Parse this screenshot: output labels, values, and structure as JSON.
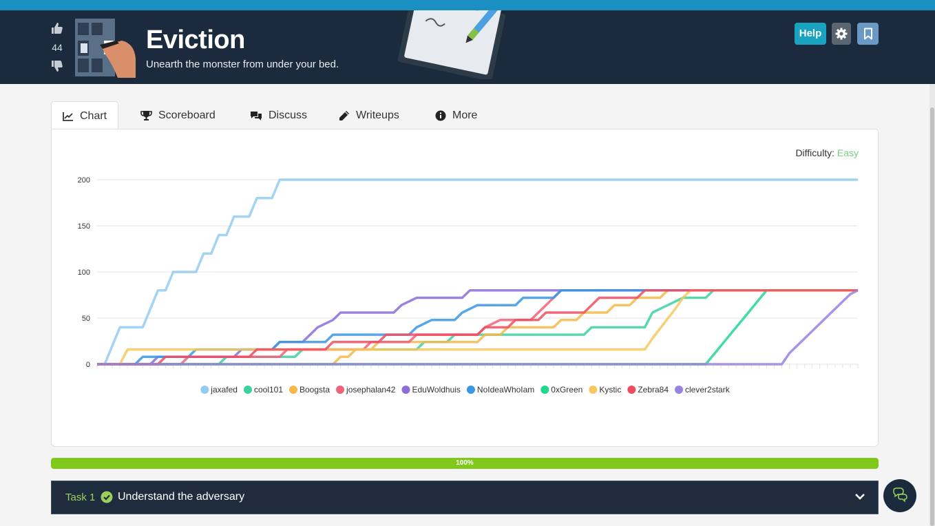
{
  "room": {
    "title": "Eviction",
    "subtitle": "Unearth the monster from under your bed.",
    "vote_count": "44"
  },
  "header_buttons": {
    "help": "Help"
  },
  "tabs": [
    {
      "label": "Chart",
      "icon": "line-chart-icon",
      "active": true
    },
    {
      "label": "Scoreboard",
      "icon": "trophy-icon"
    },
    {
      "label": "Discuss",
      "icon": "comments-icon"
    },
    {
      "label": "Writeups",
      "icon": "pencil-icon"
    },
    {
      "label": "More",
      "icon": "info-circle-icon"
    }
  ],
  "difficulty": {
    "label": "Difficulty:",
    "value": "Easy",
    "value_color": "#7bcf7e"
  },
  "progress": {
    "value": 100,
    "label": "100%",
    "color": "#80c91a"
  },
  "task": {
    "number": "Task 1",
    "title": "Understand the adversary",
    "completed": true
  },
  "chart_data": {
    "type": "line",
    "y_ticks": [
      0,
      50,
      100,
      150,
      200
    ],
    "ylim": [
      0,
      200
    ],
    "x_range": [
      0,
      100
    ],
    "grid": true,
    "legend_position": "bottom",
    "series": [
      {
        "name": "jaxafed",
        "color": "#94cbf2",
        "points": [
          [
            0,
            0
          ],
          [
            1,
            0
          ],
          [
            2,
            20
          ],
          [
            3,
            40
          ],
          [
            6,
            40
          ],
          [
            7,
            60
          ],
          [
            8,
            80
          ],
          [
            9,
            80
          ],
          [
            10,
            100
          ],
          [
            13,
            100
          ],
          [
            14,
            120
          ],
          [
            15,
            120
          ],
          [
            16,
            140
          ],
          [
            17,
            140
          ],
          [
            18,
            160
          ],
          [
            20,
            160
          ],
          [
            21,
            180
          ],
          [
            23,
            180
          ],
          [
            24,
            200
          ],
          [
            100,
            200
          ]
        ]
      },
      {
        "name": "cool101",
        "color": "#3dd0a0",
        "points": [
          [
            0,
            0
          ],
          [
            16,
            0
          ],
          [
            17,
            8
          ],
          [
            26,
            8
          ],
          [
            27,
            16
          ],
          [
            42,
            16
          ],
          [
            43,
            24
          ],
          [
            46,
            24
          ],
          [
            47,
            32
          ],
          [
            64,
            32
          ],
          [
            65,
            40
          ],
          [
            72,
            40
          ],
          [
            73,
            56
          ],
          [
            75,
            64
          ],
          [
            77,
            72
          ],
          [
            80,
            72
          ],
          [
            81,
            80
          ],
          [
            100,
            80
          ]
        ]
      },
      {
        "name": "Boogsta",
        "color": "#f5b84a",
        "points": [
          [
            0,
            0
          ],
          [
            31,
            0
          ],
          [
            32,
            8
          ],
          [
            33,
            8
          ],
          [
            34,
            16
          ],
          [
            36,
            16
          ],
          [
            37,
            24
          ],
          [
            50,
            24
          ],
          [
            51,
            32
          ],
          [
            53,
            32
          ],
          [
            54,
            40
          ],
          [
            60,
            40
          ],
          [
            61,
            48
          ],
          [
            63,
            48
          ],
          [
            64,
            56
          ],
          [
            67,
            56
          ],
          [
            68,
            64
          ],
          [
            70,
            64
          ],
          [
            71,
            72
          ],
          [
            74,
            72
          ],
          [
            75,
            80
          ],
          [
            100,
            80
          ]
        ]
      },
      {
        "name": "josephalan42",
        "color": "#f0627a",
        "points": [
          [
            0,
            0
          ],
          [
            11,
            0
          ],
          [
            12,
            8
          ],
          [
            24,
            8
          ],
          [
            25,
            16
          ],
          [
            35,
            16
          ],
          [
            36,
            24
          ],
          [
            41,
            24
          ],
          [
            42,
            32
          ],
          [
            50,
            32
          ],
          [
            51,
            40
          ],
          [
            53,
            48
          ],
          [
            57,
            48
          ],
          [
            58,
            56
          ],
          [
            59,
            64
          ],
          [
            60,
            72
          ],
          [
            61,
            80
          ],
          [
            100,
            80
          ]
        ]
      },
      {
        "name": "EduWoldhuis",
        "color": "#8b6fd6",
        "points": [
          [
            0,
            0
          ],
          [
            7,
            0
          ],
          [
            8,
            8
          ],
          [
            18,
            8
          ],
          [
            19,
            16
          ],
          [
            23,
            16
          ],
          [
            24,
            24
          ],
          [
            27,
            24
          ],
          [
            28,
            32
          ],
          [
            29,
            40
          ],
          [
            31,
            48
          ],
          [
            32,
            56
          ],
          [
            39,
            56
          ],
          [
            40,
            64
          ],
          [
            42,
            72
          ],
          [
            48,
            72
          ],
          [
            49,
            80
          ],
          [
            100,
            80
          ]
        ]
      },
      {
        "name": "NoIdeaWhoIam",
        "color": "#3a97e6",
        "points": [
          [
            0,
            0
          ],
          [
            5,
            0
          ],
          [
            6,
            8
          ],
          [
            12,
            8
          ],
          [
            13,
            16
          ],
          [
            23,
            16
          ],
          [
            24,
            24
          ],
          [
            30,
            24
          ],
          [
            31,
            32
          ],
          [
            41,
            32
          ],
          [
            42,
            40
          ],
          [
            44,
            48
          ],
          [
            47,
            48
          ],
          [
            48,
            56
          ],
          [
            50,
            64
          ],
          [
            55,
            64
          ],
          [
            56,
            72
          ],
          [
            60,
            72
          ],
          [
            61,
            80
          ],
          [
            100,
            80
          ]
        ]
      },
      {
        "name": "0xGreen",
        "color": "#22d690",
        "points": [
          [
            0,
            0
          ],
          [
            80,
            0
          ],
          [
            81,
            10
          ],
          [
            82,
            20
          ],
          [
            83,
            30
          ],
          [
            84,
            40
          ],
          [
            85,
            50
          ],
          [
            86,
            60
          ],
          [
            87,
            70
          ],
          [
            88,
            80
          ],
          [
            100,
            80
          ]
        ]
      },
      {
        "name": "Kystic",
        "color": "#f7c85e",
        "points": [
          [
            0,
            0
          ],
          [
            3,
            0
          ],
          [
            4,
            16
          ],
          [
            27,
            16
          ],
          [
            28,
            16
          ],
          [
            72,
            16
          ],
          [
            73,
            28
          ],
          [
            76,
            60
          ],
          [
            77,
            72
          ],
          [
            78,
            80
          ],
          [
            100,
            80
          ]
        ]
      },
      {
        "name": "Zebra84",
        "color": "#ee4d61",
        "points": [
          [
            0,
            0
          ],
          [
            8,
            0
          ],
          [
            9,
            8
          ],
          [
            20,
            8
          ],
          [
            21,
            16
          ],
          [
            30,
            16
          ],
          [
            31,
            24
          ],
          [
            37,
            24
          ],
          [
            38,
            32
          ],
          [
            50,
            32
          ],
          [
            51,
            40
          ],
          [
            54,
            40
          ],
          [
            55,
            48
          ],
          [
            58,
            48
          ],
          [
            59,
            56
          ],
          [
            64,
            56
          ],
          [
            65,
            64
          ],
          [
            66,
            72
          ],
          [
            71,
            72
          ],
          [
            72,
            80
          ],
          [
            100,
            80
          ]
        ]
      },
      {
        "name": "clever2stark",
        "color": "#9a82e0",
        "points": [
          [
            0,
            0
          ],
          [
            90,
            0
          ],
          [
            91,
            12
          ],
          [
            93,
            28
          ],
          [
            95,
            44
          ],
          [
            97,
            60
          ],
          [
            99,
            76
          ],
          [
            100,
            80
          ]
        ]
      }
    ]
  }
}
